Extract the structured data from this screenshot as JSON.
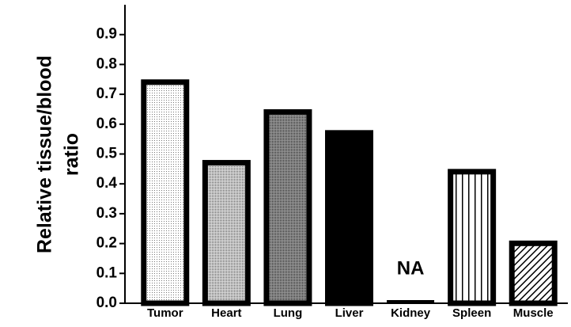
{
  "chart_data": {
    "type": "bar",
    "y_label": [
      "Relative tissue/blood",
      "ratio"
    ],
    "categories": [
      "Tumor",
      "Heart",
      "Lung",
      "Liver",
      "Kidney",
      "Spleen",
      "Muscle"
    ],
    "values": [
      0.75,
      0.48,
      0.65,
      0.58,
      null,
      0.45,
      0.21
    ],
    "value_labels": [
      null,
      null,
      null,
      null,
      "NA",
      null,
      null
    ],
    "patterns": [
      "dots-light",
      "dots",
      "dots-dark",
      "solid",
      "none",
      "vertical",
      "diagonal"
    ],
    "color": "#000000",
    "ylim": [
      0,
      1.0
    ],
    "yticks": [
      {
        "value": 0,
        "label": "0.0"
      },
      0.1,
      0.2,
      0.3,
      0.4,
      0.5,
      0.6,
      0.7,
      0.8,
      0.9
    ]
  }
}
